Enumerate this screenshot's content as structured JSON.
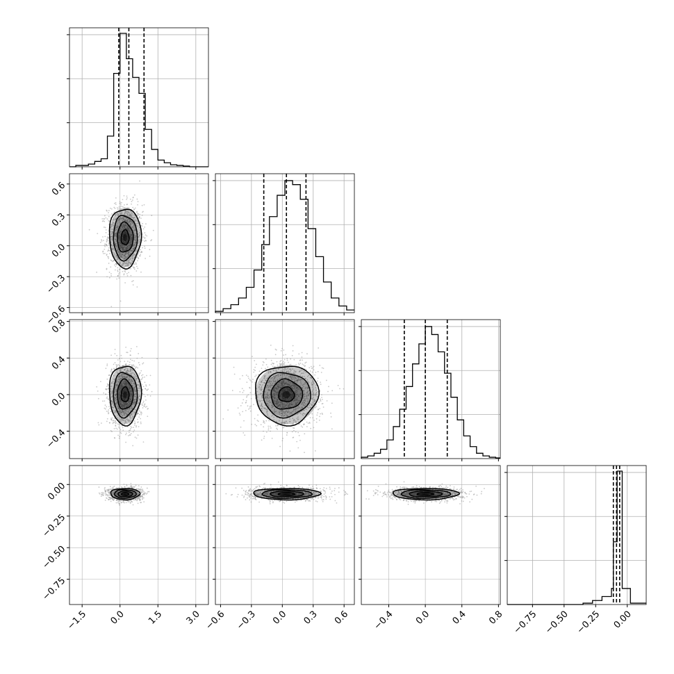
{
  "chart_data": {
    "type": "corner",
    "n_params": 4,
    "params": [
      {
        "hist_range": [
          -2.0,
          3.5
        ],
        "ticks": [
          -1.5,
          0.0,
          1.5,
          3.0
        ],
        "tick_labels": [
          "−1.5",
          "0.0",
          "1.5",
          "3.0"
        ],
        "hist_bins": [
          {
            "x": -2.0,
            "h": 0.0
          },
          {
            "x": -1.75,
            "h": 0.01
          },
          {
            "x": -1.5,
            "h": 0.01
          },
          {
            "x": -1.25,
            "h": 0.02
          },
          {
            "x": -1.0,
            "h": 0.04
          },
          {
            "x": -0.75,
            "h": 0.06
          },
          {
            "x": -0.5,
            "h": 0.23
          },
          {
            "x": -0.25,
            "h": 0.7
          },
          {
            "x": 0.0,
            "h": 1.0
          },
          {
            "x": 0.25,
            "h": 0.81
          },
          {
            "x": 0.5,
            "h": 0.67
          },
          {
            "x": 0.75,
            "h": 0.55
          },
          {
            "x": 1.0,
            "h": 0.28
          },
          {
            "x": 1.25,
            "h": 0.13
          },
          {
            "x": 1.5,
            "h": 0.05
          },
          {
            "x": 1.75,
            "h": 0.03
          },
          {
            "x": 2.0,
            "h": 0.015
          },
          {
            "x": 2.25,
            "h": 0.01
          },
          {
            "x": 2.5,
            "h": 0.005
          },
          {
            "x": 2.75,
            "h": 0.0
          },
          {
            "x": 3.0,
            "h": 0.0
          },
          {
            "x": 3.25,
            "h": 0.0
          }
        ],
        "quantiles": [
          -0.05,
          0.35,
          0.95
        ]
      },
      {
        "hist_range": [
          -0.65,
          0.7
        ],
        "ticks": [
          -0.6,
          -0.3,
          0.0,
          0.3,
          0.6
        ],
        "tick_labels": [
          "−0.6",
          "−0.3",
          "0.0",
          "0.3",
          "0.6"
        ],
        "hist_bins": [
          {
            "x": -0.65,
            "h": 0.01
          },
          {
            "x": -0.575,
            "h": 0.03
          },
          {
            "x": -0.5,
            "h": 0.06
          },
          {
            "x": -0.425,
            "h": 0.11
          },
          {
            "x": -0.35,
            "h": 0.19
          },
          {
            "x": -0.275,
            "h": 0.32
          },
          {
            "x": -0.2,
            "h": 0.51
          },
          {
            "x": -0.125,
            "h": 0.72
          },
          {
            "x": -0.05,
            "h": 0.88
          },
          {
            "x": 0.025,
            "h": 0.99
          },
          {
            "x": 0.1,
            "h": 0.96
          },
          {
            "x": 0.175,
            "h": 0.85
          },
          {
            "x": 0.25,
            "h": 0.63
          },
          {
            "x": 0.325,
            "h": 0.42
          },
          {
            "x": 0.4,
            "h": 0.23
          },
          {
            "x": 0.475,
            "h": 0.11
          },
          {
            "x": 0.55,
            "h": 0.05
          },
          {
            "x": 0.625,
            "h": 0.02
          }
        ],
        "quantiles": [
          -0.18,
          0.04,
          0.23
        ]
      },
      {
        "hist_range": [
          -0.7,
          0.82
        ],
        "ticks": [
          -0.4,
          0.0,
          0.4,
          0.8
        ],
        "tick_labels": [
          "−0.4",
          "0.0",
          "0.4",
          "0.8"
        ],
        "hist_bins": [
          {
            "x": -0.7,
            "h": 0.01
          },
          {
            "x": -0.63,
            "h": 0.02
          },
          {
            "x": -0.56,
            "h": 0.04
          },
          {
            "x": -0.49,
            "h": 0.07
          },
          {
            "x": -0.42,
            "h": 0.14
          },
          {
            "x": -0.35,
            "h": 0.24
          },
          {
            "x": -0.28,
            "h": 0.37
          },
          {
            "x": -0.21,
            "h": 0.54
          },
          {
            "x": -0.14,
            "h": 0.71
          },
          {
            "x": -0.07,
            "h": 0.86
          },
          {
            "x": 0.0,
            "h": 0.99
          },
          {
            "x": 0.07,
            "h": 0.93
          },
          {
            "x": 0.14,
            "h": 0.8
          },
          {
            "x": 0.21,
            "h": 0.64
          },
          {
            "x": 0.28,
            "h": 0.46
          },
          {
            "x": 0.35,
            "h": 0.29
          },
          {
            "x": 0.42,
            "h": 0.17
          },
          {
            "x": 0.49,
            "h": 0.09
          },
          {
            "x": 0.56,
            "h": 0.04
          },
          {
            "x": 0.63,
            "h": 0.02
          },
          {
            "x": 0.7,
            "h": 0.01
          },
          {
            "x": 0.77,
            "h": 0.005
          }
        ],
        "quantiles": [
          -0.23,
          0.0,
          0.24
        ]
      },
      {
        "hist_range": [
          -0.95,
          0.15
        ],
        "ticks": [
          -0.75,
          -0.5,
          -0.25,
          0.0
        ],
        "tick_labels": [
          "−0.75",
          "−0.50",
          "−0.25",
          "0.00"
        ],
        "hist_bins": [
          {
            "x": -0.95,
            "h": 0.0
          },
          {
            "x": -0.875,
            "h": 0.0
          },
          {
            "x": -0.8,
            "h": 0.0
          },
          {
            "x": -0.725,
            "h": 0.0
          },
          {
            "x": -0.65,
            "h": 0.0
          },
          {
            "x": -0.575,
            "h": 0.0
          },
          {
            "x": -0.5,
            "h": 0.0
          },
          {
            "x": -0.425,
            "h": 0.0
          },
          {
            "x": -0.35,
            "h": 0.01
          },
          {
            "x": -0.275,
            "h": 0.03
          },
          {
            "x": -0.2,
            "h": 0.06
          },
          {
            "x": -0.125,
            "h": 0.12
          },
          {
            "x": -0.11,
            "h": 0.47
          },
          {
            "x": -0.08,
            "h": 1.0
          },
          {
            "x": -0.04,
            "h": 0.12
          },
          {
            "x": 0.025,
            "h": 0.01
          }
        ],
        "quantiles": [
          -0.11,
          -0.085,
          -0.06
        ]
      }
    ],
    "pairs": [
      {
        "row": 1,
        "col": 0,
        "center": [
          0.2,
          0.08
        ],
        "sigma": [
          0.35,
          0.16
        ],
        "rho": 0.0,
        "contour_scales": [
          0.45,
          0.9,
          1.35,
          1.8
        ]
      },
      {
        "row": 2,
        "col": 0,
        "center": [
          0.2,
          0.0
        ],
        "sigma": [
          0.35,
          0.18
        ],
        "rho": 0.0,
        "contour_scales": [
          0.45,
          0.9,
          1.35,
          1.8
        ]
      },
      {
        "row": 2,
        "col": 1,
        "center": [
          0.04,
          0.0
        ],
        "sigma": [
          0.17,
          0.18
        ],
        "rho": 0.0,
        "contour_scales": [
          0.45,
          0.9,
          1.35,
          1.8
        ]
      },
      {
        "row": 3,
        "col": 0,
        "center": [
          0.2,
          -0.075
        ],
        "sigma": [
          0.32,
          0.025
        ],
        "rho": 0.0,
        "contour_scales": [
          0.45,
          0.9,
          1.35,
          1.8
        ]
      },
      {
        "row": 3,
        "col": 1,
        "center": [
          0.04,
          -0.075
        ],
        "sigma": [
          0.18,
          0.025
        ],
        "rho": 0.0,
        "contour_scales": [
          0.45,
          0.9,
          1.35,
          1.8
        ]
      },
      {
        "row": 3,
        "col": 2,
        "center": [
          0.0,
          -0.075
        ],
        "sigma": [
          0.2,
          0.025
        ],
        "rho": 0.0,
        "contour_scales": [
          0.45,
          0.9,
          1.35,
          1.8
        ]
      }
    ],
    "grid": true,
    "colors": {
      "line": "#000000",
      "grid": "#b0b0b0",
      "points": "#9a9a9a",
      "density": "#000000"
    }
  }
}
